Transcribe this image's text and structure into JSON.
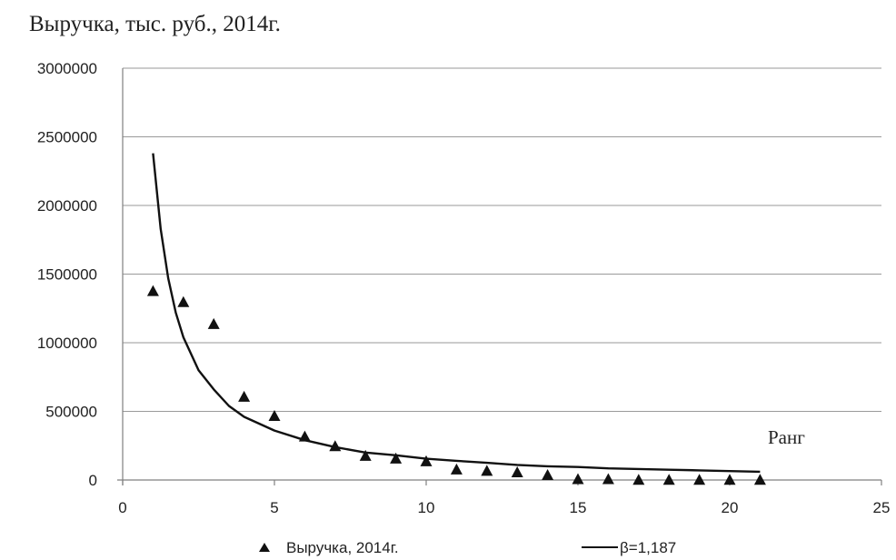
{
  "chart_data": {
    "type": "scatter",
    "ylabel": "Выручка,  тыс. руб., 2014г.",
    "xlabel": "Ранг",
    "xlim": [
      0,
      25
    ],
    "ylim": [
      0,
      3000000
    ],
    "x_ticks": [
      0,
      5,
      10,
      15,
      20,
      25
    ],
    "y_ticks": [
      0,
      500000,
      1000000,
      1500000,
      2000000,
      2500000,
      3000000
    ],
    "grid": "horizontal",
    "legend_position": "bottom",
    "series": [
      {
        "name": "Выручка, 2014г.",
        "kind": "scatter",
        "marker": "triangle",
        "color": "#111111",
        "x": [
          1,
          2,
          3,
          4,
          5,
          6,
          7,
          8,
          9,
          10,
          11,
          12,
          13,
          14,
          15,
          16,
          17,
          18,
          19,
          20,
          21
        ],
        "y": [
          1380000,
          1300000,
          1140000,
          610000,
          470000,
          320000,
          250000,
          180000,
          160000,
          140000,
          80000,
          70000,
          60000,
          40000,
          10000,
          10000,
          5000,
          5000,
          5000,
          5000,
          5000
        ]
      },
      {
        "name": "β=1,187",
        "kind": "line",
        "color": "#111111",
        "x": [
          1,
          1.25,
          1.5,
          1.75,
          2,
          2.5,
          3,
          3.5,
          4,
          5,
          6,
          7,
          8,
          9,
          10,
          11,
          12,
          13,
          14,
          15,
          16,
          17,
          18,
          19,
          20,
          21
        ],
        "y": [
          2380000,
          1830000,
          1470000,
          1220000,
          1040000,
          800000,
          660000,
          540000,
          460000,
          360000,
          290000,
          240000,
          200000,
          180000,
          155000,
          140000,
          125000,
          110000,
          100000,
          95000,
          85000,
          80000,
          75000,
          70000,
          65000,
          60000
        ]
      }
    ]
  }
}
